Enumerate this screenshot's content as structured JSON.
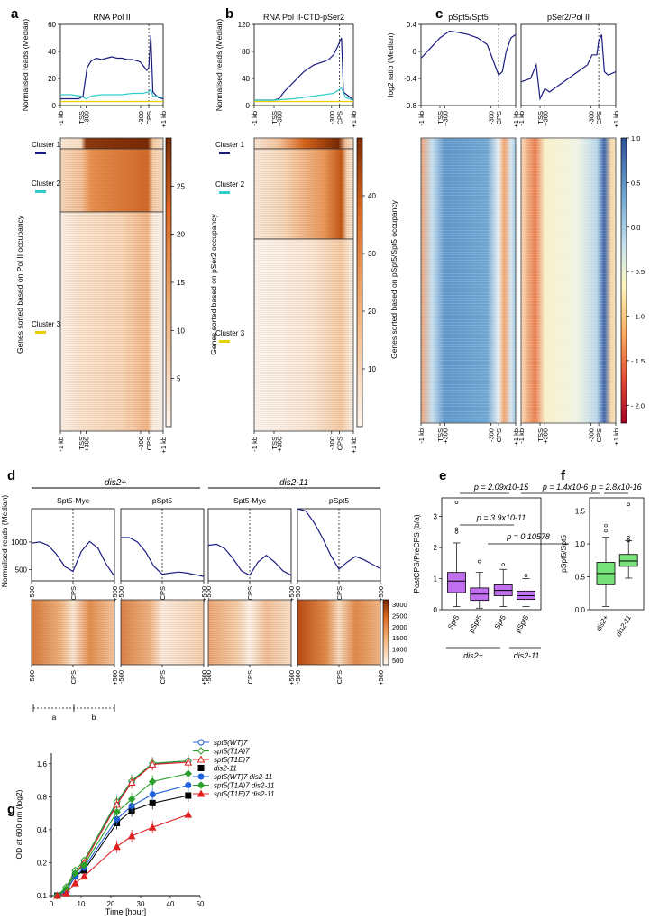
{
  "panel_letters": [
    "a",
    "b",
    "c",
    "d",
    "e",
    "f",
    "g"
  ],
  "chart_data": [
    {
      "id": "a",
      "type": "line",
      "title": "RNA Pol II",
      "ylabel": "Normalised reads (Median)",
      "ylim": [
        0,
        60
      ],
      "yticks": [
        "0",
        "20",
        "40",
        "60"
      ],
      "xticks": [
        "-1 kb",
        "TSS",
        "+300",
        "-300",
        "CPS",
        "+1 kb"
      ],
      "series": [
        {
          "name": "Cluster 1",
          "color": "#1c1c80",
          "x": [
            0,
            0.05,
            0.1,
            0.14,
            0.18,
            0.22,
            0.26,
            0.3,
            0.35,
            0.4,
            0.45,
            0.5,
            0.55,
            0.6,
            0.65,
            0.7,
            0.75,
            0.78,
            0.8,
            0.82,
            0.84,
            0.86,
            0.87,
            0.88,
            0.9,
            0.95,
            1
          ],
          "values": [
            5,
            5,
            5,
            5,
            5,
            7,
            28,
            33,
            35,
            34,
            35,
            36,
            35,
            35,
            34,
            34,
            33,
            32,
            30,
            28,
            26,
            28,
            40,
            52,
            10,
            6,
            5
          ]
        },
        {
          "name": "Cluster 2",
          "color": "#33cccc",
          "x": [
            0,
            0.1,
            0.2,
            0.25,
            0.3,
            0.4,
            0.5,
            0.6,
            0.7,
            0.8,
            0.86,
            0.88,
            0.9,
            1
          ],
          "values": [
            8,
            8,
            7,
            5,
            7,
            8,
            8,
            8,
            9,
            9,
            10,
            12,
            7,
            6
          ]
        },
        {
          "name": "Cluster 3",
          "color": "#e6d000",
          "x": [
            0,
            0.2,
            0.4,
            0.6,
            0.8,
            1
          ],
          "values": [
            3,
            3,
            3,
            3,
            3,
            3
          ]
        }
      ],
      "heatmap": {
        "ylabel": "Genes sorted based on Pol II occupancy",
        "clusters": [
          "Cluster 1",
          "Cluster 2",
          "Cluster 3"
        ],
        "colorbar_ticks": [
          "5",
          "10",
          "15",
          "20",
          "25"
        ],
        "colorbar_values": [
          5,
          10,
          15,
          20,
          25
        ],
        "colorbar_range": [
          0,
          30
        ]
      }
    },
    {
      "id": "b",
      "type": "line",
      "title": "RNA Pol II-CTD-pSer2",
      "ylabel": "Normalised reads (Median)",
      "ylim": [
        0,
        120
      ],
      "yticks": [
        "0",
        "40",
        "80",
        "120"
      ],
      "xticks": [
        "-1 kb",
        "TSS",
        "+300",
        "-300",
        "CPS",
        "+1 kb"
      ],
      "series": [
        {
          "name": "Cluster 1",
          "color": "#1c1c80",
          "x": [
            0,
            0.1,
            0.2,
            0.25,
            0.3,
            0.4,
            0.5,
            0.6,
            0.7,
            0.75,
            0.8,
            0.85,
            0.88,
            0.9,
            1
          ],
          "values": [
            8,
            8,
            8,
            10,
            20,
            35,
            50,
            60,
            65,
            68,
            75,
            90,
            100,
            20,
            8
          ]
        },
        {
          "name": "Cluster 2",
          "color": "#33cccc",
          "x": [
            0,
            0.2,
            0.4,
            0.6,
            0.8,
            0.88,
            0.92,
            1
          ],
          "values": [
            8,
            8,
            10,
            14,
            18,
            26,
            12,
            8
          ]
        },
        {
          "name": "Cluster 3",
          "color": "#e6d000",
          "x": [
            0,
            0.5,
            1
          ],
          "values": [
            6,
            6,
            6
          ]
        }
      ],
      "heatmap": {
        "ylabel": "Genes sorted based on pSer2 occupancy",
        "clusters": [
          "Cluster 1",
          "Cluster 2",
          "Cluster 3"
        ],
        "colorbar_ticks": [
          "10",
          "20",
          "30",
          "40"
        ],
        "colorbar_values": [
          10,
          20,
          30,
          40
        ],
        "colorbar_range": [
          0,
          50
        ]
      }
    },
    {
      "id": "c",
      "type": "line",
      "ylabel": "log2 ratio (Median)",
      "ylim": [
        -0.8,
        0.4
      ],
      "yticks": [
        "0.4",
        "0",
        "-0.4",
        "-0.8"
      ],
      "xticks": [
        "-1 kb",
        "TSS",
        "+300",
        "-300",
        "CPS",
        "+1 kb"
      ],
      "subplots": [
        {
          "title": "pSpt5/Spt5",
          "x": [
            0,
            0.1,
            0.2,
            0.3,
            0.4,
            0.5,
            0.6,
            0.7,
            0.78,
            0.82,
            0.86,
            0.9,
            0.95,
            1
          ],
          "values": [
            -0.1,
            0.05,
            0.2,
            0.3,
            0.28,
            0.25,
            0.2,
            0.1,
            -0.2,
            -0.35,
            -0.3,
            0.0,
            0.2,
            0.25
          ]
        },
        {
          "title": "pSer2/Pol II",
          "x": [
            0,
            0.1,
            0.16,
            0.2,
            0.25,
            0.3,
            0.4,
            0.5,
            0.6,
            0.7,
            0.75,
            0.8,
            0.82,
            0.85,
            0.88,
            0.92,
            1
          ],
          "values": [
            -0.45,
            -0.4,
            -0.2,
            -0.7,
            -0.55,
            -0.6,
            -0.5,
            -0.4,
            -0.3,
            -0.2,
            -0.05,
            -0.05,
            0.15,
            0.25,
            -0.3,
            -0.35,
            -0.3
          ]
        }
      ],
      "heatmap": {
        "ylabel": "Genes sorted based on pSpt5/Spt5 occupancy",
        "colorbar_ticks": [
          "1.0",
          "0.5",
          "0.0",
          "- 0.5",
          "- 1.0",
          "- 1.5",
          "- 2.0"
        ],
        "colorbar_values": [
          1.0,
          0.5,
          0.0,
          -0.5,
          -1.0,
          -1.5,
          -2.0
        ],
        "colorbar_range": [
          -2.2,
          1.0
        ]
      }
    },
    {
      "id": "d",
      "type": "line",
      "ylabel": "Normalised reads (Median)",
      "groups": [
        "dis2+",
        "dis2-11"
      ],
      "yticks": [
        "1000",
        "500"
      ],
      "ylim": [
        300,
        1600
      ],
      "xticks": [
        "-500",
        "CPS",
        "+500"
      ],
      "subplots": [
        {
          "title": "Spt5-Myc",
          "x": [
            0,
            0.1,
            0.2,
            0.3,
            0.4,
            0.5,
            0.6,
            0.7,
            0.8,
            0.9,
            1
          ],
          "values": [
            980,
            1000,
            940,
            780,
            560,
            470,
            830,
            1010,
            890,
            600,
            380
          ]
        },
        {
          "title": "pSpt5",
          "x": [
            0,
            0.1,
            0.2,
            0.3,
            0.4,
            0.5,
            0.6,
            0.7,
            0.8,
            0.9,
            1
          ],
          "values": [
            1080,
            1080,
            1000,
            820,
            560,
            420,
            440,
            460,
            440,
            410,
            380
          ]
        },
        {
          "title": "Spt5-Myc",
          "x": [
            0,
            0.1,
            0.2,
            0.3,
            0.4,
            0.5,
            0.6,
            0.7,
            0.8,
            0.9,
            1
          ],
          "values": [
            940,
            960,
            880,
            700,
            480,
            400,
            640,
            760,
            640,
            480,
            400
          ]
        },
        {
          "title": "pSpt5",
          "x": [
            0,
            0.1,
            0.2,
            0.3,
            0.4,
            0.5,
            0.6,
            0.7,
            0.8,
            0.9,
            1
          ],
          "values": [
            1600,
            1560,
            1350,
            1080,
            760,
            510,
            640,
            740,
            680,
            600,
            520
          ]
        }
      ],
      "heatmap": {
        "colorbar_ticks": [
          "3000",
          "2500",
          "2000",
          "1500",
          "1000",
          "500"
        ],
        "colorbar_values": [
          3000,
          2500,
          2000,
          1500,
          1000,
          500
        ],
        "colorbar_range": [
          300,
          3200
        ]
      },
      "segments": [
        "a",
        "b"
      ]
    },
    {
      "id": "e",
      "type": "box",
      "ylabel": "PostCPS/PreCPS (b/a)",
      "ylim": [
        0,
        3.6
      ],
      "yticks": [
        "0",
        "1",
        "2",
        "3"
      ],
      "categories": [
        "Spt5",
        "pSpt5",
        "Spt5",
        "pSpt5"
      ],
      "groups": [
        "dis2+",
        "dis2-11"
      ],
      "boxes": [
        {
          "q1": 0.55,
          "median": 0.92,
          "q3": 1.2,
          "wl": 0.1,
          "wh": 2.15
        },
        {
          "q1": 0.3,
          "median": 0.5,
          "q3": 0.7,
          "wl": 0.05,
          "wh": 1.2
        },
        {
          "q1": 0.45,
          "median": 0.62,
          "q3": 0.8,
          "wl": 0.1,
          "wh": 1.3
        },
        {
          "q1": 0.33,
          "median": 0.45,
          "q3": 0.6,
          "wl": 0.1,
          "wh": 1.0
        }
      ],
      "pvalues": [
        "p = 2.09x10-15",
        "p = 1.4x10-6",
        "p = 3.9x10-11",
        "p = 0.10578"
      ]
    },
    {
      "id": "f",
      "type": "box",
      "ylabel": "pSpt5/Spt5",
      "ylim": [
        0,
        1.7
      ],
      "yticks": [
        "0.0",
        "0.5",
        "1.0",
        "1.5"
      ],
      "categories": [
        "dis2+",
        "dis2-11"
      ],
      "boxes": [
        {
          "q1": 0.38,
          "median": 0.55,
          "q3": 0.72,
          "wl": 0.05,
          "wh": 1.1
        },
        {
          "q1": 0.66,
          "median": 0.74,
          "q3": 0.84,
          "wl": 0.48,
          "wh": 1.05
        }
      ],
      "pvalues": [
        "p = 2.8x10-16"
      ]
    },
    {
      "id": "g",
      "type": "line",
      "xlabel": "Time [hour]",
      "ylabel": "OD at 600 nm (log2)",
      "ylim": [
        0.1,
        2.0
      ],
      "yticks": [
        "0.1",
        "0.2",
        "0.4",
        "0.8",
        "1.6"
      ],
      "xlim": [
        0,
        50
      ],
      "xticks": [
        "0",
        "10",
        "20",
        "30",
        "40",
        "50"
      ],
      "x": [
        2,
        5,
        8,
        11,
        22,
        27,
        34,
        46
      ],
      "series": [
        {
          "name": "spt5(WT)7",
          "color": "#2060d8",
          "marker": "circle-open",
          "values": [
            0.1,
            0.115,
            0.16,
            0.2,
            0.7,
            1.1,
            1.6,
            1.7
          ]
        },
        {
          "name": "spt5(T1A)7",
          "color": "#2aa02a",
          "marker": "diamond-open",
          "values": [
            0.1,
            0.12,
            0.17,
            0.21,
            0.72,
            1.12,
            1.62,
            1.7
          ]
        },
        {
          "name": "spt5(T1E)7",
          "color": "#e02020",
          "marker": "triangle-open",
          "values": [
            0.1,
            0.115,
            0.16,
            0.2,
            0.68,
            1.08,
            1.58,
            1.65
          ]
        },
        {
          "name": "dis2-11",
          "color": "#000000",
          "marker": "square",
          "values": [
            0.1,
            0.11,
            0.15,
            0.17,
            0.46,
            0.6,
            0.7,
            0.82
          ]
        },
        {
          "name": "spt5(WT)7 dis2-11",
          "color": "#2060d8",
          "marker": "circle",
          "values": [
            0.1,
            0.11,
            0.15,
            0.18,
            0.5,
            0.66,
            0.84,
            1.02
          ]
        },
        {
          "name": "spt5(T1A)7 dis2-11",
          "color": "#2aa02a",
          "marker": "diamond",
          "values": [
            0.1,
            0.115,
            0.16,
            0.19,
            0.58,
            0.76,
            1.1,
            1.3
          ]
        },
        {
          "name": "spt5(T1E)7 dis2-11",
          "color": "#e02020",
          "marker": "triangle",
          "values": [
            0.1,
            0.105,
            0.13,
            0.15,
            0.28,
            0.35,
            0.42,
            0.55
          ]
        }
      ]
    }
  ]
}
